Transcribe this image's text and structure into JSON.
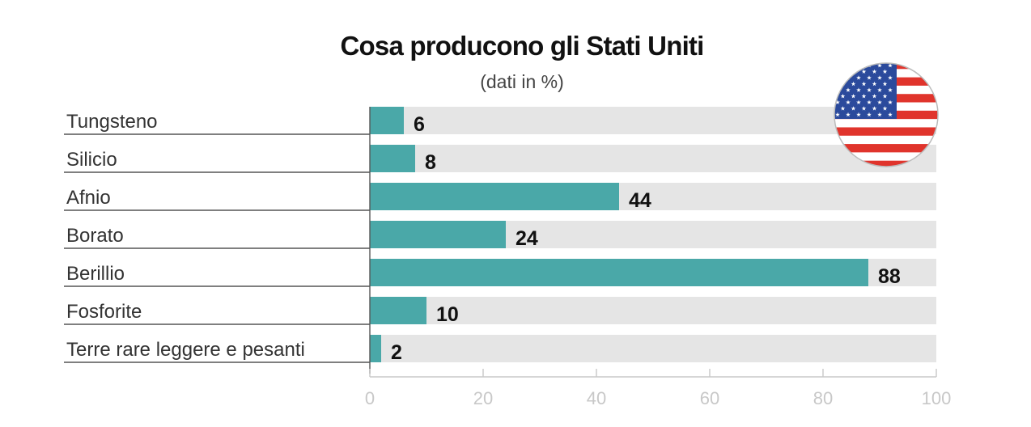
{
  "chart_data": {
    "type": "bar",
    "orientation": "horizontal",
    "title": "Cosa producono gli Stati Uniti",
    "subtitle": "(dati in %)",
    "categories": [
      "Tungsteno",
      "Silicio",
      "Afnio",
      "Borato",
      "Berillio",
      "Fosforite",
      "Terre rare leggere e pesanti"
    ],
    "values": [
      6,
      8,
      44,
      24,
      88,
      10,
      2
    ],
    "xlim": [
      0,
      100
    ],
    "xticks": [
      0,
      20,
      40,
      60,
      80,
      100
    ],
    "grid": false,
    "colors": {
      "bar": "#4aa8a8",
      "track": "#e5e5e5",
      "separator": "#555555",
      "tick_text": "#c8c8c8"
    },
    "decoration": {
      "icon": "us-flag-icon"
    }
  }
}
